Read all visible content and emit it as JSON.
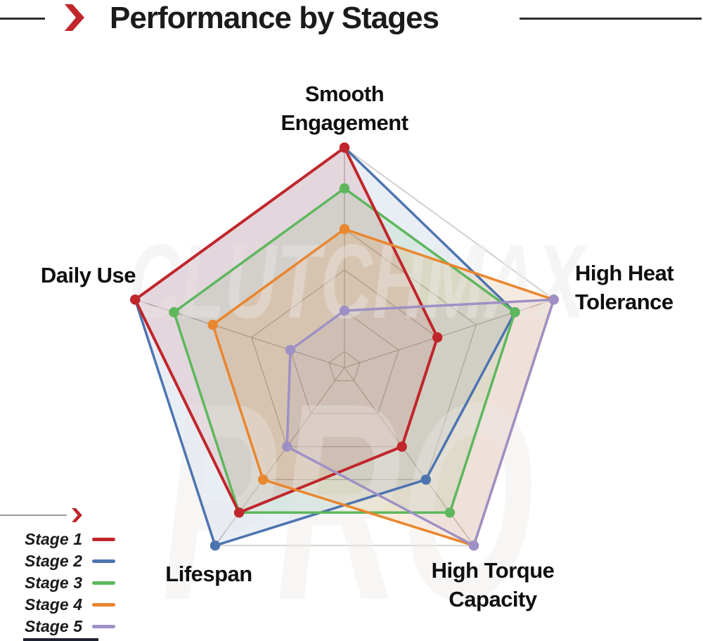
{
  "header": {
    "title": "Performance by Stages",
    "accent_color": "#c0262b",
    "rule_color": "#2d2d2d"
  },
  "chart_data": {
    "type": "radar",
    "title": "Performance by Stages",
    "axes": [
      {
        "label": "Smooth Engagement",
        "lines": [
          "Smooth",
          "Engagement"
        ]
      },
      {
        "label": "High Heat Tolerance",
        "lines": [
          "High Heat",
          "Tolerance"
        ]
      },
      {
        "label": "High Torque Capacity",
        "lines": [
          "High Torque",
          "Capacity"
        ]
      },
      {
        "label": "Lifespan",
        "lines": [
          "Lifespan"
        ]
      },
      {
        "label": "Daily Use",
        "lines": [
          "Daily Use"
        ]
      }
    ],
    "axis_order_note": "values arrays follow axes order: Smooth Engagement, High Heat Tolerance, High Torque Capacity, Lifespan, Daily Use",
    "scale": {
      "min": 0,
      "max": 5,
      "ring_values": [
        0,
        1,
        2,
        3,
        4,
        5
      ]
    },
    "series": [
      {
        "name": "Stage 1",
        "color": "#c0262b",
        "values": [
          5,
          2,
          2,
          4,
          5
        ]
      },
      {
        "name": "Stage 2",
        "color": "#4d74b0",
        "values": [
          5,
          4,
          3,
          5,
          5
        ]
      },
      {
        "name": "Stage 3",
        "color": "#5eb75d",
        "values": [
          4,
          4,
          4,
          4,
          4
        ]
      },
      {
        "name": "Stage 4",
        "color": "#e9862e",
        "values": [
          3,
          5,
          5,
          3,
          3
        ]
      },
      {
        "name": "Stage 5",
        "color": "#9e90c5",
        "values": [
          1,
          5,
          5,
          2,
          1
        ]
      }
    ],
    "draw_order": [
      "Stage 2",
      "Stage 3",
      "Stage 1",
      "Stage 4",
      "Stage 5"
    ],
    "grid": {
      "shape": "pentagon",
      "color": "#b7aea6",
      "outer_color": "#d2cfcb"
    },
    "legend_position": "bottom-left",
    "watermark": [
      "CLUTCHMAX",
      "PRO"
    ]
  },
  "legend": {
    "items": [
      {
        "label": "Stage 1",
        "word": "Stage",
        "number": "1",
        "color": "#c0262b"
      },
      {
        "label": "Stage 2",
        "word": "Stage",
        "number": "2",
        "color": "#4d74b0"
      },
      {
        "label": "Stage 3",
        "word": "Stage",
        "number": "3",
        "color": "#5eb75d"
      },
      {
        "label": "Stage 4",
        "word": "Stage",
        "number": "4",
        "color": "#e9862e"
      },
      {
        "label": "Stage 5",
        "word": "Stage",
        "number": "5",
        "color": "#9e90c5"
      }
    ]
  }
}
